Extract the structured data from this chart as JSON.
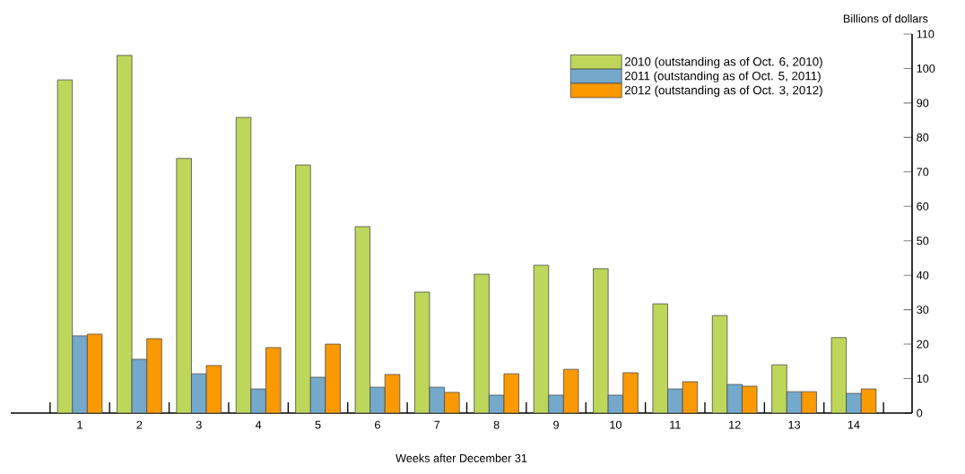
{
  "chart_data": {
    "type": "bar",
    "xlabel": "Weeks after December 31",
    "ylabel": "Billions of dollars",
    "categories": [
      "1",
      "2",
      "3",
      "4",
      "5",
      "6",
      "7",
      "8",
      "9",
      "10",
      "11",
      "12",
      "13",
      "14"
    ],
    "series": [
      {
        "name": "2010 (outstanding as of Oct. 6, 2010)",
        "color": "#bed65a",
        "values": [
          96.7,
          103.8,
          73.9,
          85.8,
          72.0,
          54.1,
          35.1,
          40.3,
          42.9,
          41.9,
          31.7,
          28.3,
          14.0,
          21.9
        ]
      },
      {
        "name": "2011 (outstanding as of Oct. 5, 2011)",
        "color": "#74a9cb",
        "values": [
          22.4,
          15.6,
          11.4,
          7.0,
          10.4,
          7.5,
          7.5,
          5.2,
          5.2,
          5.2,
          7.0,
          8.3,
          6.2,
          5.7
        ]
      },
      {
        "name": "2012 (outstanding as of Oct. 3, 2012)",
        "color": "#fb9900",
        "values": [
          22.9,
          21.6,
          13.8,
          19.0,
          20.0,
          11.2,
          6.0,
          11.4,
          12.7,
          11.7,
          9.1,
          7.8,
          6.2,
          7.0
        ]
      }
    ],
    "ylim": [
      0,
      110
    ],
    "yticks": [
      0,
      10,
      20,
      30,
      40,
      50,
      60,
      70,
      80,
      90,
      100,
      110
    ],
    "grid": false,
    "legend": "top right"
  }
}
